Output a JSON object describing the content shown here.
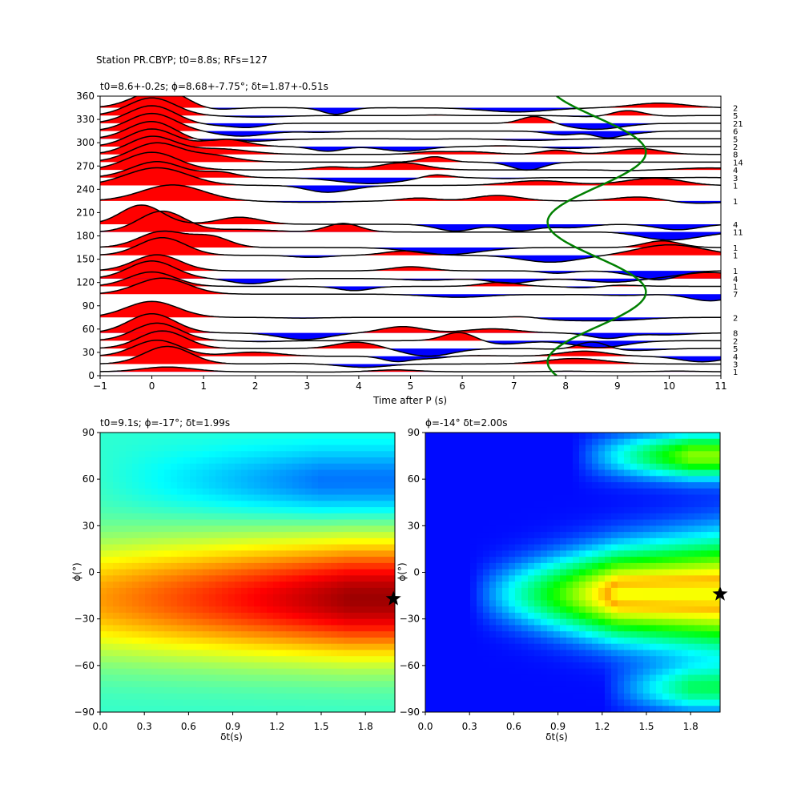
{
  "figure_title": "Station PR.CBYP; t0=8.8s; RFs=127",
  "chart_data": [
    {
      "type": "line",
      "title": "t0=8.6+-0.2s; ϕ=8.68+-7.75°; δt=1.87+-0.51s",
      "xlabel": "Time after P (s)",
      "ylabel": "",
      "xlim": [
        -1,
        11
      ],
      "ylim": [
        0,
        360
      ],
      "xticks": [
        -1,
        0,
        1,
        2,
        3,
        4,
        5,
        6,
        7,
        8,
        9,
        10,
        11
      ],
      "yticks": [
        0,
        30,
        60,
        90,
        120,
        150,
        180,
        210,
        240,
        270,
        300,
        330,
        360
      ],
      "grid": false,
      "traces": [
        {
          "baz": 5,
          "count": "1",
          "amp": 6,
          "peak": 0.3,
          "width": 0.5
        },
        {
          "baz": 15,
          "count": "3",
          "amp": 22,
          "peak": 0.3,
          "width": 0.45
        },
        {
          "baz": 25,
          "count": "4",
          "amp": 20,
          "peak": 0.1,
          "width": 0.45
        },
        {
          "baz": 35,
          "count": "5",
          "amp": 22,
          "peak": 0.2,
          "width": 0.45
        },
        {
          "baz": 45,
          "count": "2",
          "amp": 22,
          "peak": 0.1,
          "width": 0.45
        },
        {
          "baz": 55,
          "count": "8",
          "amp": 24,
          "peak": 0.0,
          "width": 0.45
        },
        {
          "baz": 75,
          "count": "2",
          "amp": 20,
          "peak": 0.0,
          "width": 0.5
        },
        {
          "baz": 105,
          "count": "7",
          "amp": 20,
          "peak": 0.2,
          "width": 0.5
        },
        {
          "baz": 115,
          "count": "1",
          "amp": 18,
          "peak": 0.0,
          "width": 0.45
        },
        {
          "baz": 125,
          "count": "4",
          "amp": 22,
          "peak": 0.0,
          "width": 0.45
        },
        {
          "baz": 135,
          "count": "1",
          "amp": 20,
          "peak": 0.1,
          "width": 0.45
        },
        {
          "baz": 155,
          "count": "1",
          "amp": 22,
          "peak": 0.2,
          "width": 0.45
        },
        {
          "baz": 165,
          "count": "1",
          "amp": 20,
          "peak": 0.2,
          "width": 0.45
        },
        {
          "baz": 185,
          "count": "11",
          "amp": 26,
          "peak": 0.2,
          "width": 0.45
        },
        {
          "baz": 195,
          "count": "4",
          "amp": 24,
          "peak": -0.2,
          "width": 0.4
        },
        {
          "baz": 225,
          "count": "1",
          "amp": 20,
          "peak": 0.4,
          "width": 0.6
        },
        {
          "baz": 245,
          "count": "1",
          "amp": 22,
          "peak": 0.1,
          "width": 0.6
        },
        {
          "baz": 255,
          "count": "3",
          "amp": 20,
          "peak": 0.1,
          "width": 0.5
        },
        {
          "baz": 265,
          "count": "4",
          "amp": 22,
          "peak": 0.0,
          "width": 0.5
        },
        {
          "baz": 275,
          "count": "14",
          "amp": 24,
          "peak": 0.1,
          "width": 0.5
        },
        {
          "baz": 285,
          "count": "8",
          "amp": 22,
          "peak": 0.0,
          "width": 0.45
        },
        {
          "baz": 295,
          "count": "2",
          "amp": 22,
          "peak": 0.0,
          "width": 0.45
        },
        {
          "baz": 305,
          "count": "5",
          "amp": 22,
          "peak": 0.0,
          "width": 0.45
        },
        {
          "baz": 315,
          "count": "6",
          "amp": 22,
          "peak": 0.0,
          "width": 0.45
        },
        {
          "baz": 325,
          "count": "21",
          "amp": 22,
          "peak": 0.0,
          "width": 0.45
        },
        {
          "baz": 335,
          "count": "5",
          "amp": 22,
          "peak": 0.0,
          "width": 0.45
        },
        {
          "baz": 345,
          "count": "2",
          "amp": 24,
          "peak": 0.2,
          "width": 0.5
        }
      ],
      "sine_curve": {
        "center": 8.6,
        "amplitude": 0.95,
        "phase": 8.68,
        "color": "#008000"
      },
      "colors": {
        "positive": "#ff0000",
        "negative": "#0000ff",
        "trace": "#000000"
      }
    },
    {
      "type": "heatmap",
      "title": "t0=9.1s; ϕ=-17°; δt=1.99s",
      "xlabel": "δt(s)",
      "ylabel": "ϕ(°)",
      "xlim": [
        0,
        2.0
      ],
      "ylim": [
        -90,
        90
      ],
      "xticks": [
        "0.0",
        "0.3",
        "0.6",
        "0.9",
        "1.2",
        "1.5",
        "1.8"
      ],
      "yticks": [
        "−90",
        "−60",
        "−30",
        "0",
        "30",
        "60",
        "90"
      ],
      "colormap": "jet",
      "marker": {
        "dt": 1.99,
        "phi": -17,
        "shape": "star"
      }
    },
    {
      "type": "heatmap",
      "title": "ϕ=-14° δt=2.00s",
      "xlabel": "δt(s)",
      "ylabel": "ϕ(°)",
      "xlim": [
        0,
        2.0
      ],
      "ylim": [
        -90,
        90
      ],
      "xticks": [
        "0.0",
        "0.3",
        "0.6",
        "0.9",
        "1.2",
        "1.5",
        "1.8"
      ],
      "yticks": [
        "−90",
        "−60",
        "−30",
        "0",
        "30",
        "60",
        "90"
      ],
      "colormap": "gist_rainbow",
      "marker": {
        "dt": 2.0,
        "phi": -14,
        "shape": "star"
      }
    }
  ]
}
